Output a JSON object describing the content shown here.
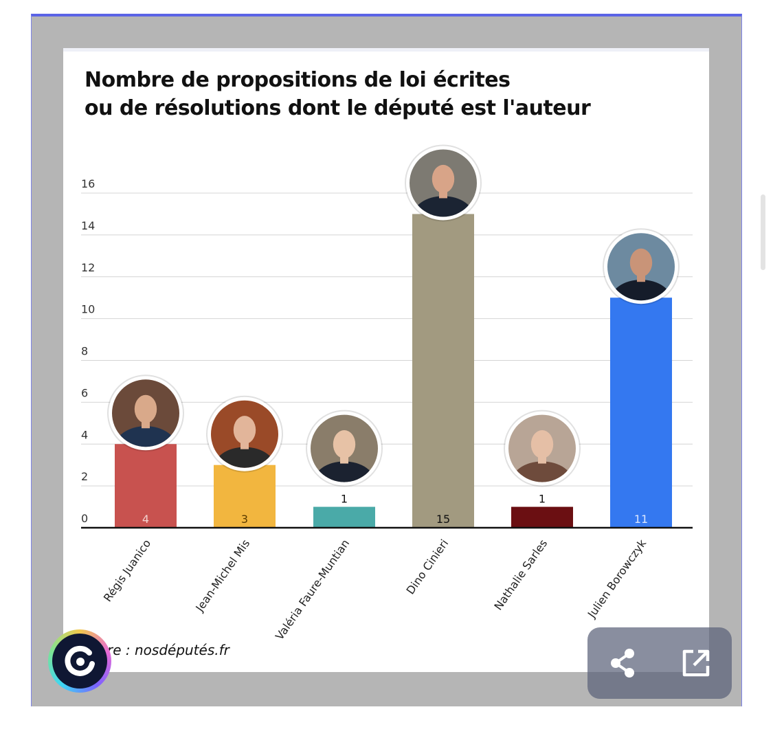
{
  "title_lines": [
    "Nombre de propositions de loi écrites",
    "ou de résolutions dont le député est l'auteur"
  ],
  "source": "re : nosdéputés.fr",
  "actions": {
    "share_icon": "share-icon",
    "open_icon": "open-external-icon"
  },
  "colors": {
    "frame": "#b5b5b5",
    "accent_border": "#5b63e6",
    "logo_bg": "#0f1733"
  },
  "chart_data": {
    "type": "bar",
    "categories": [
      "Régis Juanico",
      "Jean-Michel Mis",
      "Valéria Faure-Muntian",
      "Dino Cinieri",
      "Nathalie Sarles",
      "Julien Borowczyk"
    ],
    "values": [
      4,
      3,
      1,
      15,
      1,
      11
    ],
    "value_labels": [
      "4",
      "3",
      "1",
      "15",
      "1",
      "11"
    ],
    "label_position": [
      "inside",
      "inside",
      "above",
      "inside",
      "above",
      "inside"
    ],
    "colors": [
      "#c8524f",
      "#f2b63f",
      "#4aaaa8",
      "#a29a80",
      "#6b0f12",
      "#3478f0"
    ],
    "value_label_colors": [
      "#f2d3d0",
      "#5a3b00",
      "#111111",
      "#111111",
      "#111111",
      "#dbe7ff"
    ],
    "photos": [
      "portrait",
      "portrait",
      "portrait",
      "portrait",
      "portrait",
      "portrait"
    ],
    "ylim": [
      0,
      16
    ],
    "yticks": [
      0,
      2,
      4,
      6,
      8,
      10,
      12,
      14,
      16
    ],
    "grid": true,
    "legend": false,
    "xlabel": "",
    "ylabel": ""
  }
}
